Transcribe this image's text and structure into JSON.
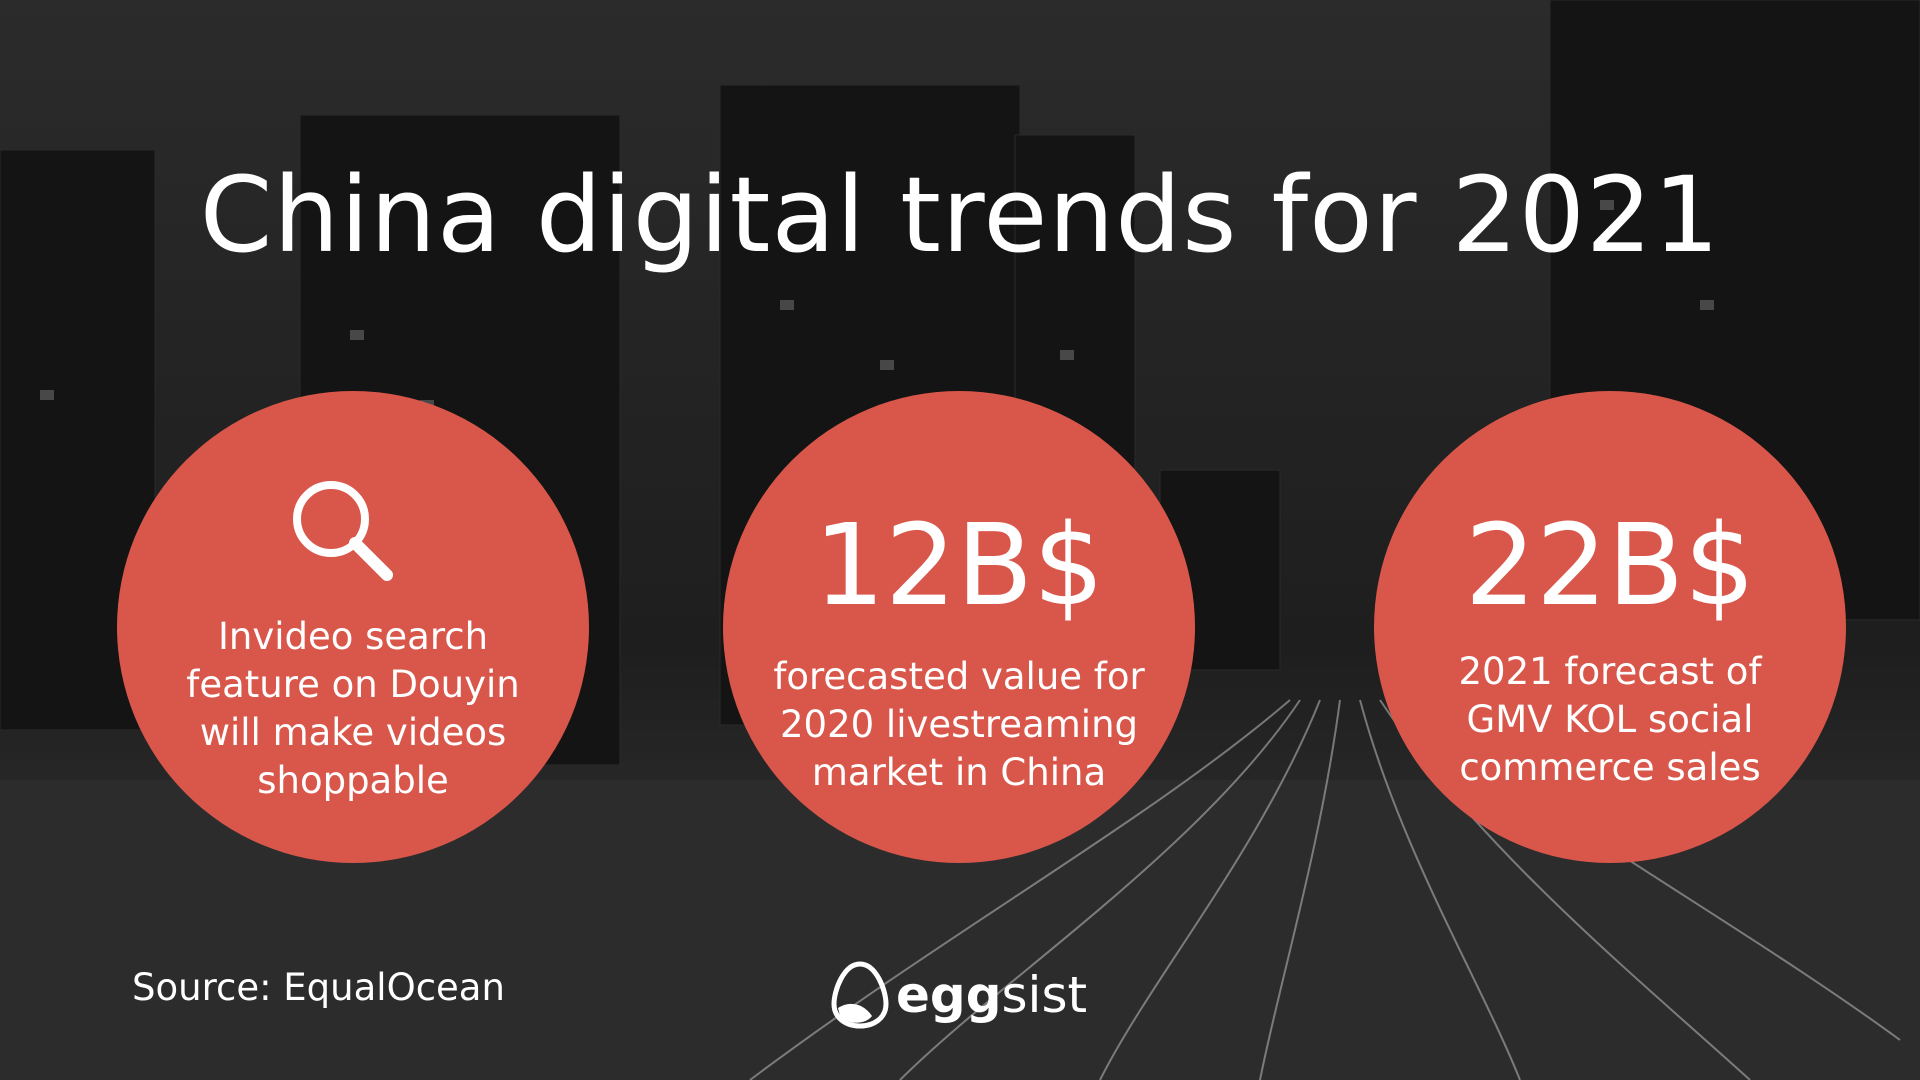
{
  "title": "China digital trends for 2021",
  "cards": [
    {
      "lines": [
        "Invideo search",
        "feature on Douyin",
        "will make videos",
        "shoppable"
      ]
    },
    {
      "headline": "12B$",
      "lines": [
        "forecasted value for",
        "2020 livestreaming",
        "market in China"
      ]
    },
    {
      "headline": "22B$",
      "lines": [
        "2021 forecast of",
        "GMV KOL social",
        "commerce sales"
      ]
    }
  ],
  "source": "Source: EqualOcean",
  "logo": {
    "bold": "egg",
    "light": "sist"
  }
}
